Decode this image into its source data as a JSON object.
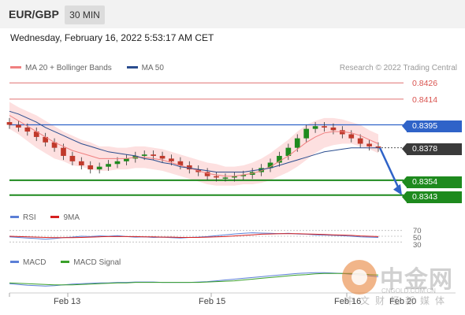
{
  "header": {
    "symbol": "EUR/GBP",
    "timeframe": "30 MIN",
    "timestamp": "Wednesday, February 16, 2022 5:53:17 AM CET"
  },
  "legend": {
    "ma20_label": "MA 20 + Bollinger Bands",
    "ma50_label": "MA 50",
    "credit": "Research © 2022 Trading Central"
  },
  "colors": {
    "ma20": "#f08080",
    "ma50": "#2a4d8f",
    "bollinger_fill": "#fde0e0",
    "resistance": "#e07070",
    "pivot": "#2f63c8",
    "support": "#1e8a1e",
    "candle_bull": "#1e8a1e",
    "candle_bear": "#c0392b",
    "rsi": "#5b7fd6",
    "ma9": "#d62020",
    "macd": "#5b7fd6",
    "macd_signal": "#3aa02a",
    "arrow": "#2f63c8"
  },
  "levels": {
    "r2": "0.8426",
    "r1": "0.8414",
    "pivot": "0.8395",
    "last": "0.8378",
    "s1": "0.8354",
    "s2": "0.8343"
  },
  "rsi_panel": {
    "rsi_label": "RSI",
    "ma_label": "9MA",
    "levels": [
      "70",
      "50",
      "30"
    ]
  },
  "macd_panel": {
    "macd_label": "MACD",
    "signal_label": "MACD Signal"
  },
  "x_axis": [
    "Feb 13",
    "Feb 15",
    "Feb 16",
    "Feb 20"
  ],
  "watermark": {
    "brand": "中金网",
    "url": "CNGOLD.COM.CN",
    "sub": "中文财经新媒体"
  },
  "chart_data": {
    "type": "line",
    "title": "EUR/GBP",
    "timeframe": "30 MIN",
    "price_close": [
      0.8395,
      0.8393,
      0.839,
      0.8386,
      0.8382,
      0.8378,
      0.8372,
      0.8368,
      0.8365,
      0.8362,
      0.8364,
      0.8366,
      0.8368,
      0.837,
      0.8372,
      0.8373,
      0.8372,
      0.837,
      0.8368,
      0.8365,
      0.8362,
      0.836,
      0.8357,
      0.8356,
      0.8356,
      0.8357,
      0.8358,
      0.836,
      0.8363,
      0.8367,
      0.8372,
      0.8378,
      0.8385,
      0.8392,
      0.8394,
      0.8393,
      0.8391,
      0.8388,
      0.8385,
      0.8381,
      0.8379,
      0.8378
    ],
    "ma20": [
      0.8402,
      0.8398,
      0.8394,
      0.839,
      0.8386,
      0.8382,
      0.8379,
      0.8376,
      0.8374,
      0.8372,
      0.837,
      0.837,
      0.837,
      0.837,
      0.8371,
      0.8371,
      0.837,
      0.8369,
      0.8367,
      0.8365,
      0.8363,
      0.8361,
      0.8359,
      0.8358,
      0.8357,
      0.8357,
      0.8358,
      0.8359,
      0.8361,
      0.8364,
      0.8368,
      0.8372,
      0.8377,
      0.8382,
      0.8386,
      0.8389,
      0.839,
      0.839,
      0.8389,
      0.8387,
      0.8384,
      0.8381
    ],
    "ma50": [
      0.8405,
      0.8403,
      0.84,
      0.8397,
      0.8393,
      0.839,
      0.8387,
      0.8384,
      0.8381,
      0.8379,
      0.8377,
      0.8375,
      0.8374,
      0.8373,
      0.8372,
      0.837,
      0.8369,
      0.8367,
      0.8366,
      0.8364,
      0.8363,
      0.8362,
      0.8361,
      0.836,
      0.836,
      0.836,
      0.836,
      0.8361,
      0.8362,
      0.8363,
      0.8365,
      0.8367,
      0.8369,
      0.8371,
      0.8373,
      0.8375,
      0.8376,
      0.8377,
      0.8378,
      0.8378,
      0.8378,
      0.8378
    ],
    "bb_width": [
      0.001,
      0.001,
      0.0011,
      0.0012,
      0.0012,
      0.0012,
      0.0011,
      0.0011,
      0.001,
      0.001,
      0.0009,
      0.0009,
      0.0008,
      0.0008,
      0.0008,
      0.0008,
      0.0008,
      0.0008,
      0.0008,
      0.0008,
      0.0008,
      0.0008,
      0.0008,
      0.0008,
      0.0007,
      0.0007,
      0.0007,
      0.0008,
      0.0009,
      0.001,
      0.0011,
      0.0012,
      0.0013,
      0.0013,
      0.0012,
      0.0011,
      0.001,
      0.0009,
      0.0008,
      0.0008,
      0.0007,
      0.0007
    ],
    "ylim": [
      0.8337,
      0.8432
    ],
    "rsi": [
      48,
      46,
      44,
      42,
      40,
      42,
      45,
      47,
      50,
      49,
      51,
      50,
      52,
      49,
      47,
      48,
      46,
      47,
      45,
      44,
      46,
      47,
      49,
      52,
      55,
      58,
      60,
      62,
      61,
      60,
      59,
      60,
      58,
      57,
      55,
      54,
      53,
      52,
      50,
      48,
      47,
      46
    ],
    "rsi_ma9": [
      50,
      49,
      48,
      47,
      46,
      45,
      45,
      45,
      46,
      47,
      48,
      49,
      49,
      49,
      49,
      48,
      48,
      47,
      47,
      46,
      46,
      46,
      47,
      48,
      49,
      51,
      53,
      55,
      57,
      58,
      59,
      59,
      59,
      58,
      57,
      56,
      55,
      54,
      53,
      51,
      50,
      49
    ],
    "rsi_ylim": [
      20,
      80
    ],
    "macd": [
      -0.0001,
      -0.00012,
      -0.00014,
      -0.00015,
      -0.00016,
      -0.00015,
      -0.00013,
      -0.00011,
      -0.0001,
      -9e-05,
      -8e-05,
      -8e-05,
      -7e-05,
      -7e-05,
      -6e-05,
      -6e-05,
      -6e-05,
      -7e-05,
      -7e-05,
      -7e-05,
      -7e-05,
      -6e-05,
      -5e-05,
      -3e-05,
      -1e-05,
      1e-05,
      3e-05,
      5e-05,
      7e-05,
      9e-05,
      0.00011,
      0.00013,
      0.00015,
      0.00016,
      0.00017,
      0.00017,
      0.00016,
      0.00015,
      0.00013,
      0.00011,
      9e-05,
      7e-05
    ],
    "macd_signal": [
      -8e-05,
      -9e-05,
      -0.0001,
      -0.00011,
      -0.00012,
      -0.00013,
      -0.00013,
      -0.00013,
      -0.00012,
      -0.00011,
      -0.0001,
      -9e-05,
      -8e-05,
      -8e-05,
      -7e-05,
      -7e-05,
      -7e-05,
      -7e-05,
      -7e-05,
      -7e-05,
      -7e-05,
      -7e-05,
      -6e-05,
      -5e-05,
      -4e-05,
      -3e-05,
      -1e-05,
      1e-05,
      3e-05,
      5e-05,
      7e-05,
      9e-05,
      0.00011,
      0.00012,
      0.00014,
      0.00015,
      0.00015,
      0.00015,
      0.00015,
      0.00014,
      0.00012,
      0.00011
    ],
    "macd_ylim": [
      -0.00025,
      0.00025
    ],
    "horizontal_levels": {
      "resistance_2": 0.8426,
      "resistance_1": 0.8414,
      "pivot": 0.8395,
      "last": 0.8378,
      "support_1": 0.8354,
      "support_2": 0.8343
    },
    "forecast_arrow": {
      "from": 0.8378,
      "to": 0.8343
    },
    "x_ticks": [
      "Feb 13",
      "Feb 15",
      "Feb 16",
      "Feb 20"
    ],
    "legend": [
      "MA 20 + Bollinger Bands",
      "MA 50"
    ],
    "legend_position": "top-left",
    "grid": false
  }
}
